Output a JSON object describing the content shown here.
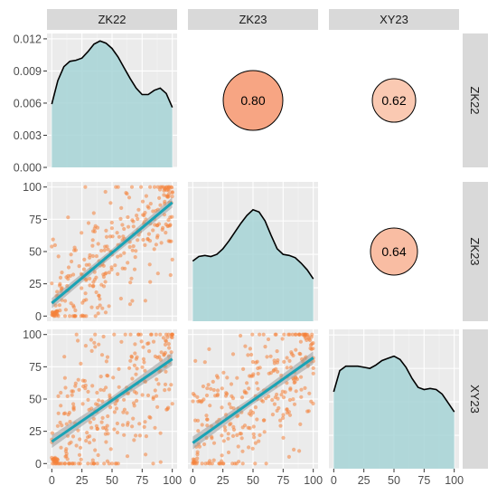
{
  "chart_data": {
    "type": "scatter-matrix",
    "variables": [
      "ZK22",
      "ZK23",
      "XY23"
    ],
    "colors": {
      "points": "#F4813A",
      "density_fill": "#A6D4D6",
      "density_line": "#000000",
      "fit_line": "#1AA3B5",
      "fit_band": "#9A9A9A",
      "circle_stroke": "#000000",
      "strip_fill": "#D9D9D9",
      "panel_fill": "#EBEBEB"
    },
    "axes": {
      "x_ticks": [
        "0",
        "25",
        "50",
        "75",
        "100"
      ],
      "x_range": [
        -4,
        104
      ],
      "scatter_y_ticks": [
        "0",
        "25",
        "50",
        "75",
        "100"
      ],
      "scatter_y_range": [
        -4,
        104
      ],
      "density_y_ticks": [
        "0.000",
        "0.003",
        "0.006",
        "0.009",
        "0.012"
      ],
      "density_y_range": [
        0,
        0.0125
      ]
    },
    "correlations": [
      {
        "row": 0,
        "col": 1,
        "pair": "ZK22-ZK23",
        "value": "0.80",
        "fill": "#F7A583",
        "radius": 33
      },
      {
        "row": 0,
        "col": 2,
        "pair": "ZK22-XY23",
        "value": "0.62",
        "fill": "#FAC9B2",
        "radius": 24
      },
      {
        "row": 1,
        "col": 2,
        "pair": "ZK23-XY23",
        "value": "0.64",
        "fill": "#F9BDA3",
        "radius": 26
      }
    ],
    "densities": [
      {
        "variable": "ZK22",
        "x": [
          0,
          5,
          10,
          15,
          20,
          25,
          30,
          35,
          40,
          45,
          50,
          55,
          60,
          65,
          70,
          75,
          80,
          85,
          90,
          95,
          100
        ],
        "y": [
          0.0059,
          0.0081,
          0.0094,
          0.0099,
          0.01,
          0.0102,
          0.0108,
          0.0115,
          0.0118,
          0.0116,
          0.0111,
          0.0103,
          0.0093,
          0.0083,
          0.0074,
          0.0068,
          0.0068,
          0.0072,
          0.0074,
          0.0069,
          0.0056
        ]
      },
      {
        "variable": "ZK23",
        "x": [
          0,
          5,
          10,
          15,
          20,
          25,
          30,
          35,
          40,
          45,
          50,
          55,
          60,
          65,
          70,
          75,
          80,
          85,
          90,
          95,
          100
        ],
        "y": [
          0.0054,
          0.0058,
          0.0059,
          0.0058,
          0.006,
          0.0065,
          0.0072,
          0.008,
          0.0088,
          0.0095,
          0.01,
          0.0098,
          0.009,
          0.0077,
          0.0065,
          0.006,
          0.0059,
          0.0057,
          0.0052,
          0.0046,
          0.0038
        ]
      },
      {
        "variable": "XY23",
        "x": [
          0,
          5,
          10,
          15,
          20,
          25,
          30,
          35,
          40,
          45,
          50,
          55,
          60,
          65,
          70,
          75,
          80,
          85,
          90,
          95,
          100
        ],
        "y": [
          0.0069,
          0.0088,
          0.0092,
          0.0092,
          0.0092,
          0.0091,
          0.009,
          0.0093,
          0.0097,
          0.0099,
          0.0101,
          0.0098,
          0.0091,
          0.0081,
          0.0073,
          0.0071,
          0.0072,
          0.0071,
          0.0067,
          0.0059,
          0.0051
        ]
      }
    ],
    "scatter_panels": [
      {
        "x_var": "ZK22",
        "y_var": "ZK23",
        "r": 0.8,
        "fit": {
          "x": [
            0,
            100
          ],
          "y": [
            10,
            88
          ]
        },
        "band": [
          4,
          3,
          4
        ]
      },
      {
        "x_var": "ZK22",
        "y_var": "XY23",
        "r": 0.62,
        "fit": {
          "x": [
            0,
            100
          ],
          "y": [
            17,
            81
          ]
        },
        "band": [
          5,
          3,
          5
        ]
      },
      {
        "x_var": "ZK23",
        "y_var": "XY23",
        "r": 0.64,
        "fit": {
          "x": [
            0,
            100
          ],
          "y": [
            16,
            82
          ]
        },
        "band": [
          5,
          3,
          5
        ]
      }
    ]
  }
}
